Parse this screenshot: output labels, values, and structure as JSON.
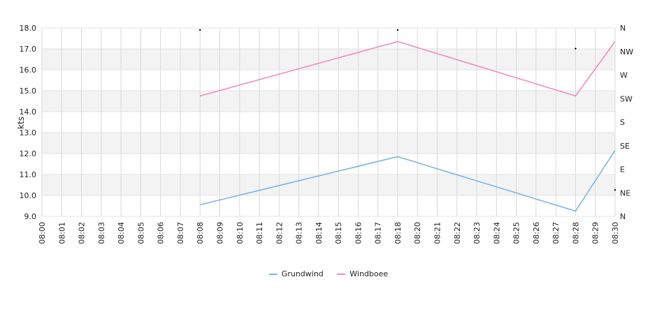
{
  "chart_data": {
    "type": "line",
    "title": "",
    "xlabel": "",
    "ylabel": "kts",
    "ylim": [
      9.0,
      18.0
    ],
    "y_ticks": [
      "9.0",
      "10.0",
      "11.0",
      "12.0",
      "13.0",
      "14.0",
      "15.0",
      "16.0",
      "17.0",
      "18.0"
    ],
    "x_ticks": [
      "08:00",
      "08:01",
      "08:02",
      "08:03",
      "08:04",
      "08:05",
      "08:06",
      "08:07",
      "08:08",
      "08:09",
      "08:10",
      "08:11",
      "08:12",
      "08:13",
      "08:14",
      "08:15",
      "08:16",
      "08:17",
      "08:18",
      "08:20",
      "08:21",
      "08:22",
      "08:23",
      "08:24",
      "08:25",
      "08:26",
      "08:27",
      "08:28",
      "08:29",
      "08:30"
    ],
    "y2_ticks": [
      "N",
      "NE",
      "E",
      "SE",
      "S",
      "SW",
      "W",
      "NW",
      "N"
    ],
    "grid": true,
    "legend_position": "bottom",
    "series": [
      {
        "name": "Grundwind",
        "color": "#7cb5ec",
        "x": [
          "08:08",
          "08:18",
          "08:28",
          "08:30"
        ],
        "values": [
          9.55,
          11.85,
          9.25,
          12.15
        ]
      },
      {
        "name": "Windboee",
        "color": "#f08cc0",
        "x": [
          "08:08",
          "08:18",
          "08:28",
          "08:30"
        ],
        "values": [
          14.75,
          17.35,
          14.75,
          17.35
        ]
      }
    ],
    "direction_markers": [
      {
        "x": "08:08",
        "direction": "N"
      },
      {
        "x": "08:18",
        "direction": "N"
      },
      {
        "x": "08:28",
        "direction": "NW"
      },
      {
        "x": "08:30",
        "direction": "NE"
      }
    ]
  }
}
